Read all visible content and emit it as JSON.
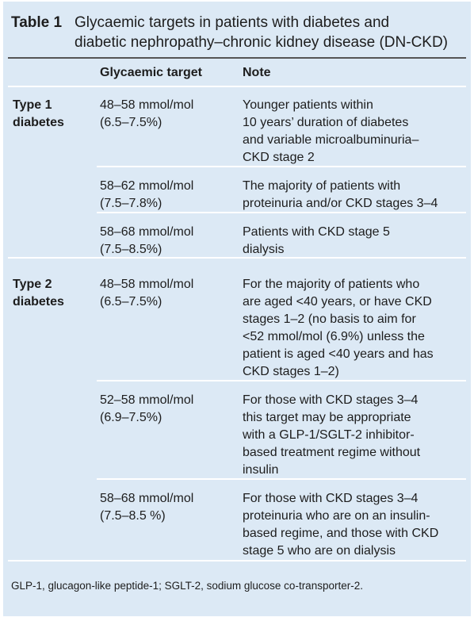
{
  "title": {
    "label": "Table 1",
    "text": [
      "Glycaemic targets in patients with diabetes and",
      "diabetic nephropathy–chronic kidney disease (DN-CKD)"
    ]
  },
  "table": {
    "header": {
      "target": "Glycaemic target",
      "note": "Note"
    },
    "groups": [
      {
        "label": [
          "Type 1",
          "diabetes"
        ],
        "rows": [
          {
            "target": [
              "48–58 mmol/mol",
              "(6.5–7.5%)"
            ],
            "note": [
              "Younger patients within",
              "10 years’ duration of diabetes",
              "and variable microalbuminuria–",
              "CKD stage 2"
            ]
          },
          {
            "target": [
              "58–62 mmol/mol",
              "(7.5–7.8%)"
            ],
            "note": [
              "The majority of patients with",
              "proteinuria and/or CKD stages 3–4"
            ]
          },
          {
            "target": [
              "58–68 mmol/mol",
              "(7.5–8.5%)"
            ],
            "note": [
              "Patients with CKD stage 5",
              "dialysis"
            ]
          }
        ]
      },
      {
        "label": [
          "Type 2",
          "diabetes"
        ],
        "rows": [
          {
            "target": [
              "48–58 mmol/mol",
              "(6.5–7.5%)"
            ],
            "note": [
              "For the majority of patients who",
              "are aged <40 years, or have CKD",
              "stages 1–2 (no basis to aim for",
              "<52 mmol/mol (6.9%) unless the",
              "patient is aged <40 years and has",
              "CKD stages 1–2)"
            ]
          },
          {
            "target": [
              "52–58 mmol/mol",
              "(6.9–7.5%)"
            ],
            "note": [
              "For those with CKD stages 3–4",
              "this target may be appropriate",
              "with a GLP-1/SGLT-2 inhibitor-",
              "based treatment regime without",
              "insulin"
            ]
          },
          {
            "target": [
              "58–68 mmol/mol",
              "(7.5–8.5 %)"
            ],
            "note": [
              "For those with CKD stages 3–4",
              "proteinuria who are on an insulin-",
              "based regime, and those with CKD",
              "stage 5 who are on dialysis"
            ]
          }
        ]
      }
    ]
  },
  "footnote": "GLP-1, glucagon-like peptide-1; SGLT-2, sodium glucose co-transporter-2."
}
